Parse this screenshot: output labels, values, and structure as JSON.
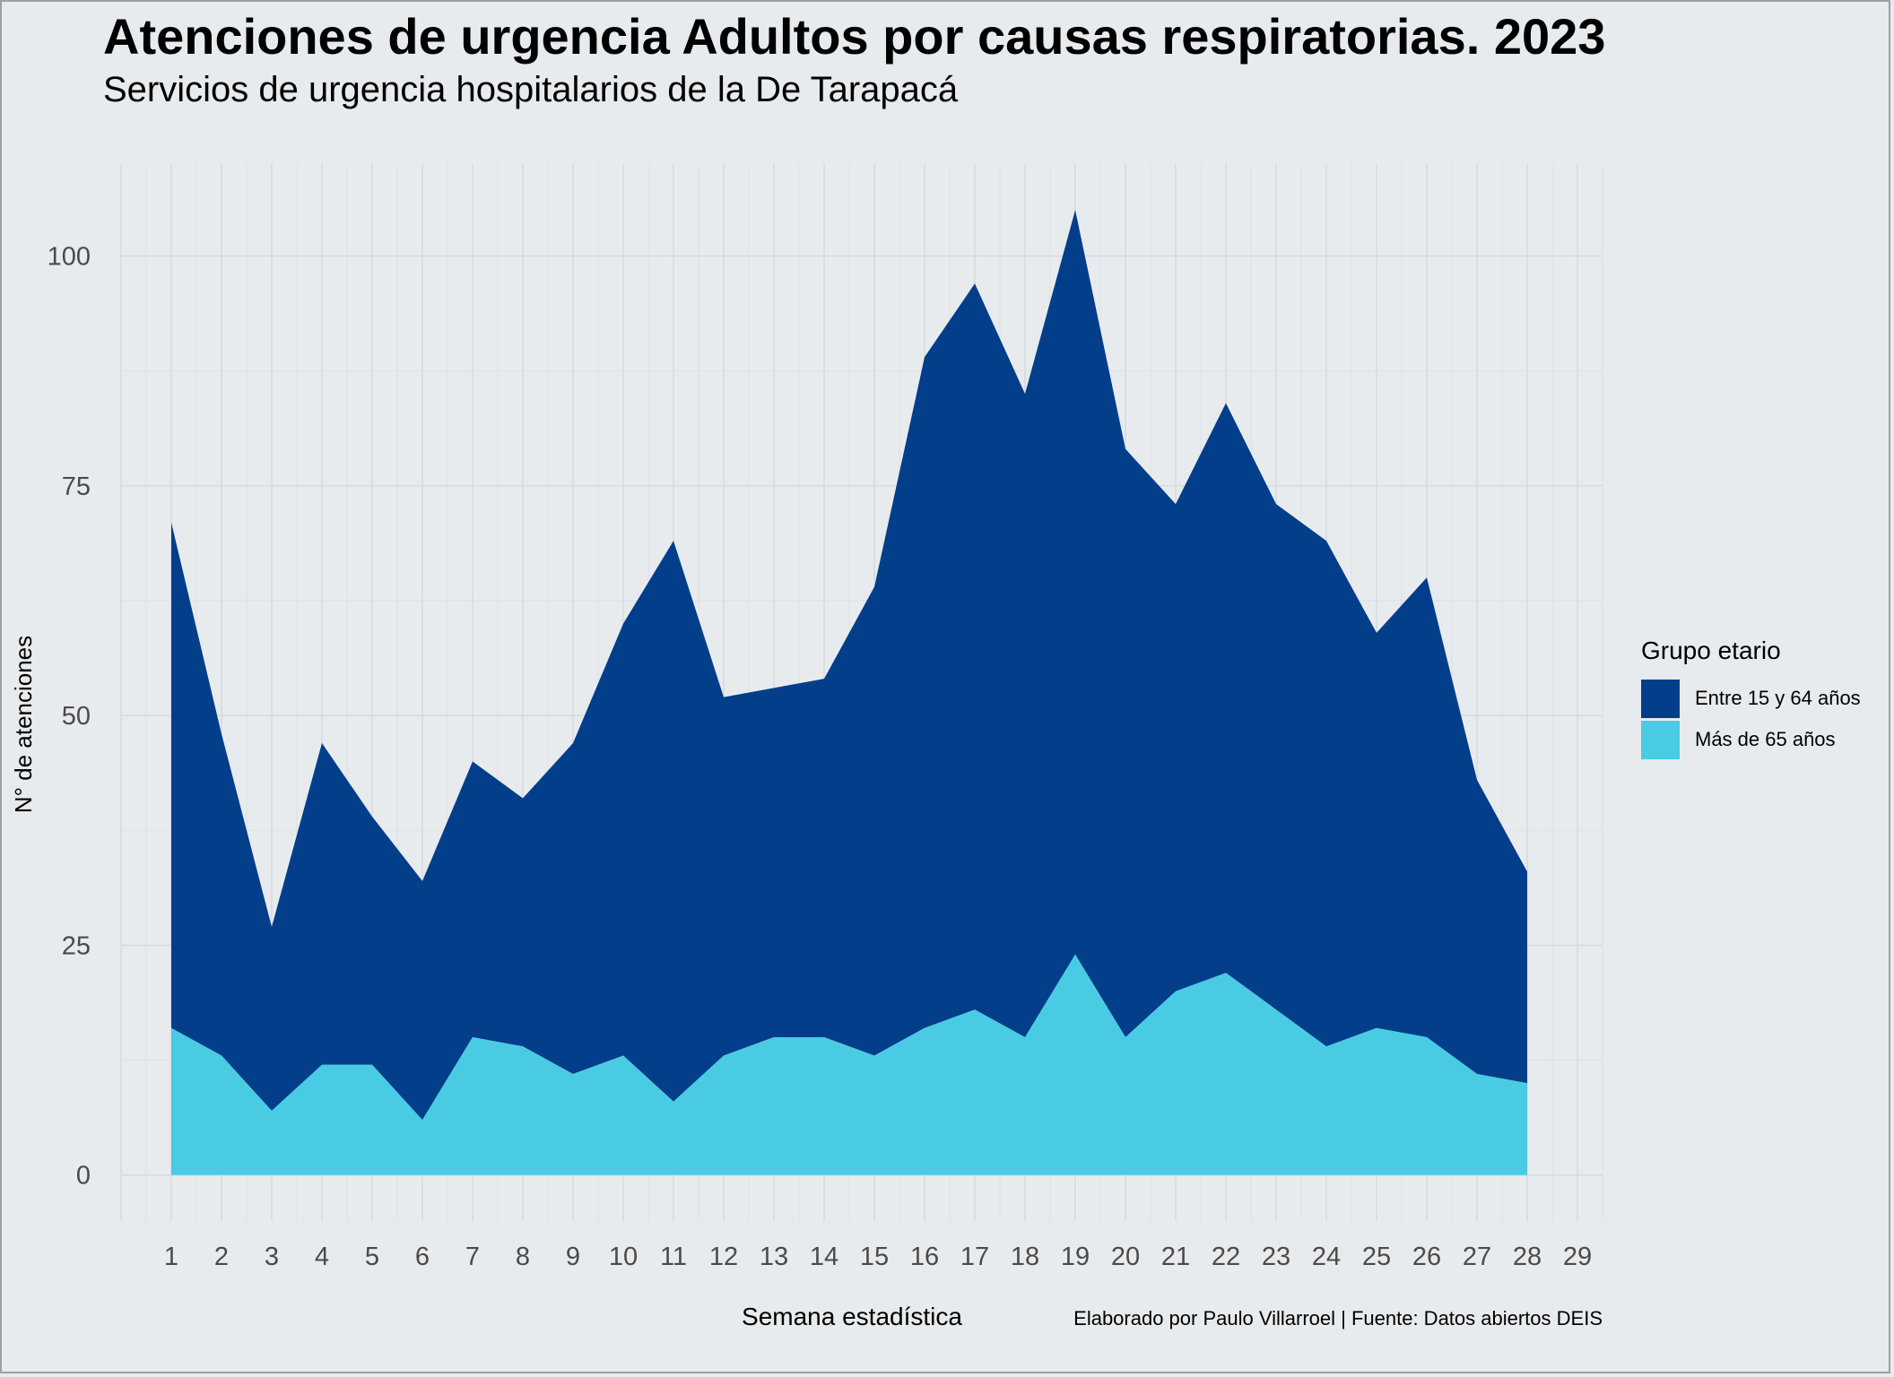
{
  "title": "Atenciones de urgencia Adultos por causas respiratorias. 2023",
  "subtitle": "Servicios de urgencia hospitalarios de la De Tarapacá",
  "caption": "Elaborado por Paulo Villarroel | Fuente: Datos abiertos DEIS",
  "legend": {
    "title": "Grupo etario",
    "items": [
      {
        "label": "Entre 15 y 64 años",
        "color": "#033e8a"
      },
      {
        "label": "Más de 65 años",
        "color": "#4acbe4"
      }
    ]
  },
  "chart_data": {
    "type": "area",
    "stacked": true,
    "xlabel": "Semana estadística",
    "ylabel": "N° de atenciones",
    "x_ticks": [
      1,
      2,
      3,
      4,
      5,
      6,
      7,
      8,
      9,
      10,
      11,
      12,
      13,
      14,
      15,
      16,
      17,
      18,
      19,
      20,
      21,
      22,
      23,
      24,
      25,
      26,
      27,
      28,
      29
    ],
    "y_ticks": [
      0,
      25,
      50,
      75,
      100
    ],
    "xlim": [
      0,
      29.5
    ],
    "ylim": [
      -5,
      110
    ],
    "grid": true,
    "legend_position": "right",
    "x": [
      1,
      2,
      3,
      4,
      5,
      6,
      7,
      8,
      9,
      10,
      11,
      12,
      13,
      14,
      15,
      16,
      17,
      18,
      19,
      20,
      21,
      22,
      23,
      24,
      25,
      26,
      27,
      28
    ],
    "series": [
      {
        "name": "Entre 15 y 64 años",
        "color": "#033e8a",
        "values": [
          55,
          35,
          20,
          35,
          27,
          26,
          30,
          27,
          36,
          47,
          61,
          39,
          38,
          39,
          51,
          73,
          79,
          70,
          81,
          64,
          53,
          62,
          55,
          55,
          43,
          50,
          32,
          23
        ]
      },
      {
        "name": "Más de 65 años",
        "color": "#4acbe4",
        "values": [
          16,
          13,
          7,
          12,
          12,
          6,
          15,
          14,
          11,
          13,
          8,
          13,
          15,
          15,
          13,
          16,
          18,
          15,
          24,
          15,
          20,
          22,
          18,
          14,
          16,
          15,
          11,
          10
        ]
      }
    ]
  }
}
